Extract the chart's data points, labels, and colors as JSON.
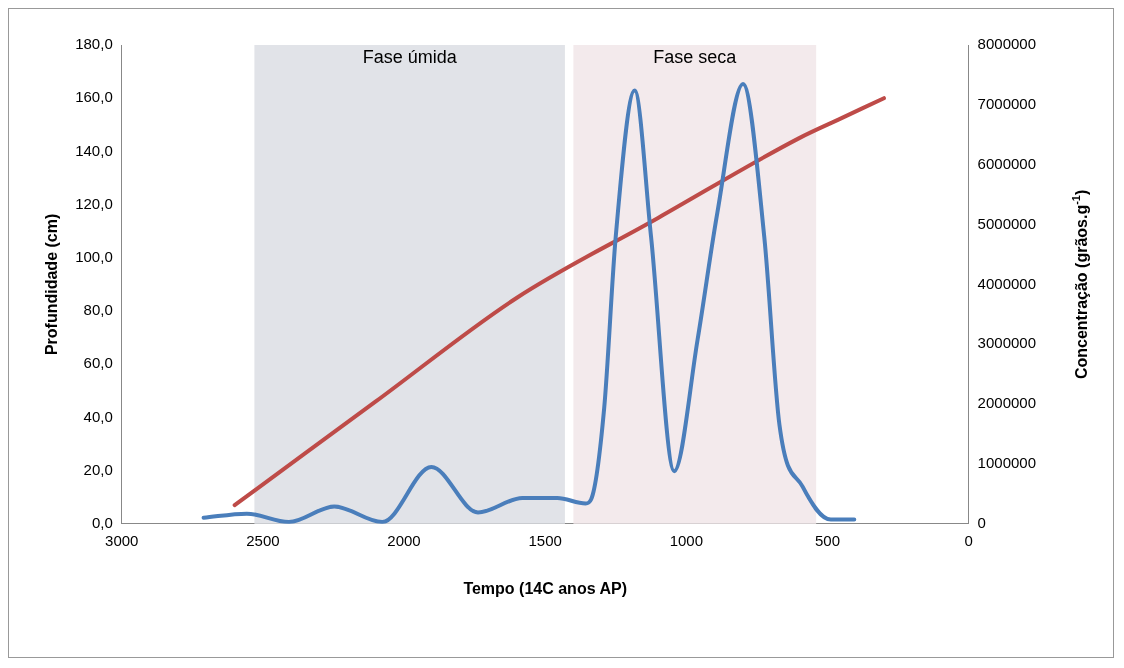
{
  "chart_data": {
    "type": "line",
    "xlabel": "Tempo (14C anos AP)",
    "ylabel": "Profundidade (cm)",
    "y2label": "Concentração (grãos.g$^{-1}$)",
    "xlim": [
      3000,
      0
    ],
    "xticks": [
      3000,
      2500,
      2000,
      1500,
      1000,
      500,
      0
    ],
    "ylim": [
      0,
      180
    ],
    "yticks": [
      {
        "value": 0,
        "label": "0,0"
      },
      {
        "value": 20,
        "label": "20,0"
      },
      {
        "value": 40,
        "label": "40,0"
      },
      {
        "value": 60,
        "label": "60,0"
      },
      {
        "value": 80,
        "label": "80,0"
      },
      {
        "value": 100,
        "label": "100,0"
      },
      {
        "value": 120,
        "label": "120,0"
      },
      {
        "value": 140,
        "label": "140,0"
      },
      {
        "value": 160,
        "label": "160,0"
      },
      {
        "value": 180,
        "label": "180,0"
      }
    ],
    "y2lim": [
      0,
      8000000
    ],
    "y2ticks": [
      0,
      1000000,
      2000000,
      3000000,
      4000000,
      5000000,
      6000000,
      7000000,
      8000000
    ],
    "grid": false,
    "legend": false,
    "marker": "none",
    "line_style": "solid",
    "bands": [
      {
        "axis": "x",
        "from": 2530,
        "to": 1430,
        "label": "Fase úmida",
        "color": "#e1e3e8"
      },
      {
        "axis": "x",
        "from": 1400,
        "to": 540,
        "label": "Fase seca",
        "color": "#f3eaec"
      }
    ],
    "series": [
      {
        "color": "#4a7ebb",
        "axis": "y2",
        "x": [
          2710,
          2557,
          2408,
          2247,
          2077,
          1903,
          1738,
          1581,
          1457,
          1357,
          1337,
          1291,
          1250,
          1183,
          1125,
          1043,
          960,
          890,
          799,
          724,
          670,
          588,
          488,
          405
        ],
        "values": [
          100000,
          170000,
          30000,
          290000,
          30000,
          950000,
          190000,
          430000,
          430000,
          340000,
          410000,
          1930000,
          4800000,
          7240000,
          4800000,
          880000,
          3080000,
          5200000,
          7350000,
          4800000,
          1650000,
          620000,
          70000,
          70000
        ]
      },
      {
        "color": "#be4b48",
        "axis": "y",
        "x": [
          2600,
          2100,
          1600,
          1100,
          600,
          450,
          300
        ],
        "values": [
          7,
          46,
          85,
          115,
          145,
          152.5,
          160
        ]
      }
    ]
  }
}
